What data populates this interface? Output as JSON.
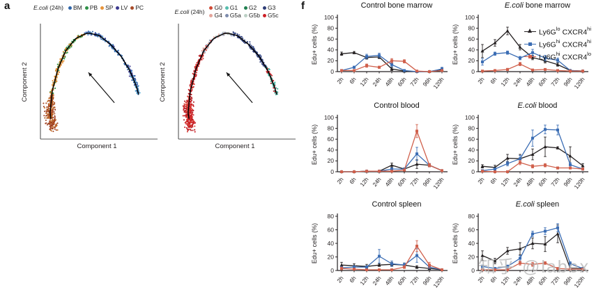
{
  "panel_a": {
    "label": "a"
  },
  "panel_f": {
    "label": "f",
    "legend": [
      {
        "base1": "Ly6G",
        "sup1": "lo",
        "base2": "CXCR4",
        "sup2": "hi",
        "color": "#231f20",
        "marker": "triangle"
      },
      {
        "base1": "Ly6G",
        "sup1": "hi",
        "base2": "CXCR4",
        "sup2": "hi",
        "color": "#3b6db4",
        "marker": "square"
      },
      {
        "base1": "Ly6G",
        "sup1": "hi",
        "base2": "CXCR4",
        "sup2": "lo",
        "color": "#d0604c",
        "marker": "square"
      }
    ]
  },
  "watermark": "知乎 @labex",
  "chart_data": [
    {
      "type": "scatter",
      "name": "pseudotime-trajectory-by-tissue",
      "legend_title": {
        "em": "E.coli",
        "text": " (24h)"
      },
      "legend_items": [
        {
          "label": "BM",
          "color": "#2e64a8"
        },
        {
          "label": "PB",
          "color": "#2e9147"
        },
        {
          "label": "SP",
          "color": "#e8943a"
        },
        {
          "label": "LV",
          "color": "#3c3a8f"
        },
        {
          "label": "PC",
          "color": "#a84b28"
        }
      ],
      "xlabel": "Component 1",
      "ylabel": "Component 2",
      "segments": [
        {
          "t0": 0.0,
          "t1": 0.18,
          "colors": [
            "#b05a22",
            "#a84b28",
            "#c9762e",
            "#9c3d22"
          ]
        },
        {
          "t0": 0.18,
          "t1": 0.4,
          "colors": [
            "#e0892c",
            "#e8943a",
            "#2e9147",
            "#d9832f"
          ]
        },
        {
          "t0": 0.4,
          "t1": 0.55,
          "colors": [
            "#2e9147",
            "#e0892c",
            "#359a4b"
          ]
        },
        {
          "t0": 0.55,
          "t1": 0.9,
          "colors": [
            "#3c72b2",
            "#2e64a8",
            "#4a86c8",
            "#3c3a8f"
          ]
        },
        {
          "t0": 0.9,
          "t1": 1.0,
          "colors": [
            "#2e64a8",
            "#1f3f96",
            "#45a0d0"
          ]
        }
      ]
    },
    {
      "type": "scatter",
      "name": "pseudotime-trajectory-by-cell-cycle",
      "legend_title": {
        "em": "E.coli",
        "text": " (24h)"
      },
      "legend_items": [
        {
          "label": "G0",
          "color": "#d04a35"
        },
        {
          "label": "G1",
          "color": "#56bdae"
        },
        {
          "label": "G2",
          "color": "#208050"
        },
        {
          "label": "G3",
          "color": "#2f3e77"
        },
        {
          "label": "G4",
          "color": "#e4a49a"
        },
        {
          "label": "G5a",
          "color": "#7d8bac"
        },
        {
          "label": "G5b",
          "color": "#bcd0c5"
        },
        {
          "label": "G5c",
          "color": "#cd2027"
        }
      ],
      "xlabel": "Component 1",
      "ylabel": "Component 2",
      "segments": [
        {
          "t0": 0.0,
          "t1": 0.4,
          "colors": [
            "#cd2027",
            "#d93a31",
            "#b71c22"
          ]
        },
        {
          "t0": 0.4,
          "t1": 0.48,
          "colors": [
            "#cd2027",
            "#8695b0",
            "#e4a49a"
          ]
        },
        {
          "t0": 0.48,
          "t1": 0.6,
          "colors": [
            "#bcd0c5",
            "#7d8bac",
            "#c9cfe2",
            "#e4a49a"
          ]
        },
        {
          "t0": 0.6,
          "t1": 0.85,
          "colors": [
            "#2f3e77",
            "#3a4d8c"
          ]
        },
        {
          "t0": 0.85,
          "t1": 1.0,
          "colors": [
            "#45b5a5",
            "#38a894",
            "#cd2027"
          ]
        }
      ]
    },
    {
      "type": "line",
      "title_em": "",
      "title_text": "Control bone marrow",
      "ylabel": "Edu+ cells (%)",
      "ylim": [
        0,
        100
      ],
      "ytick_step": 20,
      "categories": [
        "2h",
        "6h",
        "12h",
        "24h",
        "48h",
        "60h",
        "72h",
        "96h",
        "120h"
      ],
      "series": [
        {
          "name": "Ly6G-lo CXCR4-hi",
          "color": "#231f20",
          "marker": "triangle",
          "values": [
            33,
            35,
            26,
            27,
            5,
            1,
            0,
            0,
            4
          ],
          "errors": [
            3,
            2,
            3,
            3,
            3,
            1,
            0,
            0,
            2
          ]
        },
        {
          "name": "Ly6G-hi CXCR4-hi",
          "color": "#3b6db4",
          "marker": "square",
          "values": [
            2,
            8,
            28,
            30,
            13,
            2,
            0,
            0,
            5
          ],
          "errors": [
            1,
            2,
            4,
            4,
            4,
            1,
            0,
            0,
            3
          ]
        },
        {
          "name": "Ly6G-hi CXCR4-lo",
          "color": "#d0604c",
          "marker": "square",
          "values": [
            2,
            2,
            11,
            8,
            20,
            19,
            1,
            0,
            2
          ],
          "errors": [
            1,
            1,
            3,
            2,
            4,
            3,
            1,
            0,
            1
          ]
        }
      ]
    },
    {
      "type": "line",
      "title_em": "E.coli",
      "title_text": " bone marrow",
      "ylabel": "Edu+ cells (%)",
      "ylim": [
        0,
        100
      ],
      "ytick_step": 20,
      "categories": [
        "2h",
        "6h",
        "12h",
        "24h",
        "48h",
        "60h",
        "72h",
        "96h",
        "120h"
      ],
      "series": [
        {
          "name": "Ly6G-lo CXCR4-hi",
          "color": "#231f20",
          "marker": "triangle",
          "values": [
            38,
            53,
            75,
            45,
            26,
            20,
            13,
            2,
            1
          ],
          "errors": [
            12,
            6,
            7,
            5,
            4,
            4,
            3,
            1,
            0
          ]
        },
        {
          "name": "Ly6G-hi CXCR4-hi",
          "color": "#3b6db4",
          "marker": "square",
          "values": [
            18,
            33,
            35,
            25,
            35,
            25,
            21,
            2,
            1
          ],
          "errors": [
            6,
            3,
            3,
            3,
            6,
            5,
            4,
            1,
            0
          ]
        },
        {
          "name": "Ly6G-hi CXCR4-lo",
          "color": "#d0604c",
          "marker": "square",
          "values": [
            1,
            2,
            4,
            14,
            3,
            4,
            2,
            1,
            1
          ],
          "errors": [
            1,
            1,
            2,
            3,
            1,
            1,
            1,
            0,
            0
          ]
        }
      ]
    },
    {
      "type": "line",
      "title_em": "",
      "title_text": "Control blood",
      "ylabel": "Edu+ cells (%)",
      "ylim": [
        0,
        100
      ],
      "ytick_step": 20,
      "categories": [
        "2h",
        "6h",
        "12h",
        "24h",
        "48h",
        "60h",
        "72h",
        "96h",
        "120h"
      ],
      "series": [
        {
          "name": "Ly6G-lo CXCR4-hi",
          "color": "#231f20",
          "marker": "triangle",
          "values": [
            0,
            0,
            1,
            1,
            12,
            5,
            14,
            12,
            2
          ],
          "errors": [
            0,
            0,
            1,
            1,
            4,
            2,
            8,
            3,
            1
          ]
        },
        {
          "name": "Ly6G-hi CXCR4-hi",
          "color": "#3b6db4",
          "marker": "square",
          "values": [
            0,
            0,
            1,
            1,
            5,
            5,
            33,
            12,
            2
          ],
          "errors": [
            0,
            0,
            0,
            1,
            2,
            2,
            12,
            3,
            1
          ]
        },
        {
          "name": "Ly6G-hi CXCR4-lo",
          "color": "#d0604c",
          "marker": "square",
          "values": [
            0,
            0,
            1,
            1,
            1,
            3,
            75,
            12,
            2
          ],
          "errors": [
            0,
            0,
            0,
            0,
            1,
            1,
            12,
            3,
            1
          ]
        }
      ]
    },
    {
      "type": "line",
      "title_em": "E.coli",
      "title_text": " blood",
      "ylabel": "Edu+ cells (%)",
      "ylim": [
        0,
        100
      ],
      "ytick_step": 20,
      "categories": [
        "2h",
        "6h",
        "12h",
        "24h",
        "48h",
        "60h",
        "72h",
        "96h",
        "120h"
      ],
      "series": [
        {
          "name": "Ly6G-lo CXCR4-hi",
          "color": "#231f20",
          "marker": "triangle",
          "values": [
            10,
            8,
            25,
            24,
            32,
            46,
            44,
            29,
            11
          ],
          "errors": [
            3,
            4,
            7,
            8,
            10,
            18,
            2,
            17,
            4
          ]
        },
        {
          "name": "Ly6G-hi CXCR4-hi",
          "color": "#3b6db4",
          "marker": "square",
          "values": [
            2,
            5,
            15,
            24,
            62,
            78,
            77,
            13,
            5
          ],
          "errors": [
            1,
            2,
            4,
            6,
            15,
            8,
            9,
            4,
            2
          ]
        },
        {
          "name": "Ly6G-hi CXCR4-lo",
          "color": "#d0604c",
          "marker": "square",
          "values": [
            1,
            0,
            0,
            17,
            10,
            12,
            7,
            7,
            5
          ],
          "errors": [
            1,
            0,
            0,
            4,
            3,
            3,
            2,
            2,
            2
          ]
        }
      ]
    },
    {
      "type": "line",
      "title_em": "",
      "title_text": "Control spleen",
      "ylabel": "Edu+ cells (%)",
      "ylim": [
        0,
        80
      ],
      "ytick_step": 20,
      "categories": [
        "2h",
        "6h",
        "12h",
        "24h",
        "48h",
        "60h",
        "72h",
        "96h",
        "120h"
      ],
      "series": [
        {
          "name": "Ly6G-lo CXCR4-hi",
          "color": "#231f20",
          "marker": "triangle",
          "values": [
            8,
            7,
            6,
            8,
            9,
            8,
            5,
            3,
            1
          ],
          "errors": [
            4,
            3,
            3,
            2,
            3,
            3,
            2,
            1,
            1
          ]
        },
        {
          "name": "Ly6G-hi CXCR4-hi",
          "color": "#3b6db4",
          "marker": "square",
          "values": [
            4,
            5,
            5,
            21,
            10,
            8,
            22,
            5,
            1
          ],
          "errors": [
            2,
            2,
            2,
            10,
            4,
            3,
            10,
            2,
            1
          ]
        },
        {
          "name": "Ly6G-hi CXCR4-lo",
          "color": "#d0604c",
          "marker": "square",
          "values": [
            3,
            2,
            1,
            1,
            1,
            5,
            36,
            8,
            1
          ],
          "errors": [
            2,
            1,
            1,
            1,
            1,
            2,
            8,
            4,
            1
          ]
        }
      ]
    },
    {
      "type": "line",
      "title_em": "E.coli",
      "title_text": " spleen",
      "ylabel": "Edu+ cells (%)",
      "ylim": [
        0,
        80
      ],
      "ytick_step": 20,
      "categories": [
        "2h",
        "6h",
        "12h",
        "24h",
        "48h",
        "60h",
        "72h",
        "96h",
        "120h"
      ],
      "series": [
        {
          "name": "Ly6G-lo CXCR4-hi",
          "color": "#231f20",
          "marker": "triangle",
          "values": [
            22,
            14,
            29,
            32,
            40,
            39,
            54,
            3,
            3
          ],
          "errors": [
            7,
            4,
            5,
            9,
            8,
            11,
            13,
            1,
            1
          ]
        },
        {
          "name": "Ly6G-hi CXCR4-hi",
          "color": "#3b6db4",
          "marker": "square",
          "values": [
            6,
            3,
            6,
            18,
            54,
            58,
            63,
            10,
            3
          ],
          "errors": [
            2,
            1,
            2,
            4,
            4,
            5,
            6,
            3,
            1
          ]
        },
        {
          "name": "Ly6G-hi CXCR4-lo",
          "color": "#d0604c",
          "marker": "square",
          "values": [
            1,
            1,
            1,
            11,
            9,
            11,
            3,
            2,
            2
          ],
          "errors": [
            1,
            1,
            1,
            3,
            3,
            2,
            1,
            1,
            1
          ]
        }
      ]
    }
  ]
}
